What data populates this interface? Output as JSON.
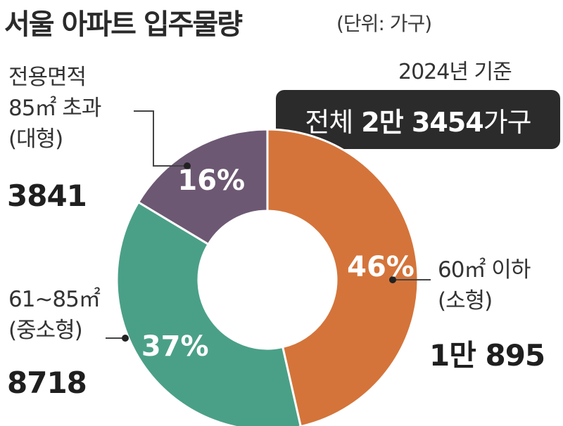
{
  "title": "서울 아파트 입주물량",
  "unit_note": "(단위: 가구)",
  "basis_year": "2024년 기준",
  "total": {
    "prefix": "전체",
    "value": "2만 3454",
    "suffix": "가구"
  },
  "chart_data": {
    "type": "pie",
    "variant": "donut",
    "title": "서울 아파트 입주물량",
    "unit": "가구",
    "total": 23454,
    "slices": [
      {
        "name": "60㎡ 이하 (소형)",
        "value": 10895,
        "percent": 46,
        "percent_label": "46%",
        "color": "#d4743a"
      },
      {
        "name": "61~85㎡ (중소형)",
        "value": 8718,
        "percent": 37,
        "percent_label": "37%",
        "color": "#4aa087"
      },
      {
        "name": "전용면적 85㎡ 초과 (대형)",
        "value": 3841,
        "percent": 16,
        "percent_label": "16%",
        "color": "#6d5873"
      }
    ]
  },
  "callouts": {
    "small": {
      "line1": "60㎡ 이하",
      "line2": "(소형)",
      "count": "1만 895"
    },
    "mid": {
      "line1": "61~85㎡",
      "line2": "(중소형)",
      "count": "8718"
    },
    "large": {
      "line1": "전용면적",
      "line2": "85㎡ 초과",
      "line3": "(대형)",
      "count": "3841"
    }
  },
  "colors": {
    "line": "#444444",
    "dot": "#222222",
    "donut_hole": "#ffffff"
  }
}
